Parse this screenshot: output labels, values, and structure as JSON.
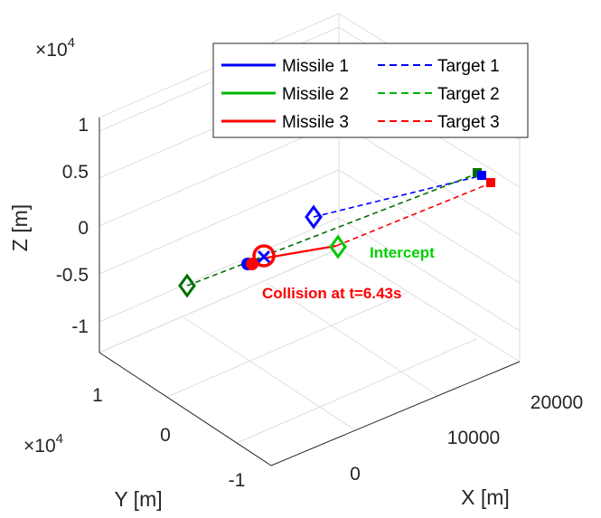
{
  "chart_data": {
    "type": "line",
    "view": "3d",
    "xlabel": "X [m]",
    "ylabel": "Y [m]",
    "zlabel": "Z [m]",
    "x_ticks": [
      "0",
      "10000",
      "20000"
    ],
    "y_ticks": [
      "1",
      "0",
      "-1"
    ],
    "y_exponent": "×10",
    "y_exponent_power": "4",
    "z_ticks": [
      "1",
      "0.5",
      "0",
      "-0.5",
      "-1"
    ],
    "z_exponent": "×10",
    "z_exponent_power": "4",
    "xlim": [
      -2000,
      22000
    ],
    "ylim": [
      -12000,
      12000
    ],
    "zlim": [
      -12000,
      12000
    ],
    "grid": true,
    "legend_position": "top",
    "legend": [
      "Missile 1",
      "Target 1",
      "Missile 2",
      "Target 2",
      "Missile 3",
      "Target 3"
    ],
    "colors": {
      "blue": "#0000ff",
      "green": "#00b400",
      "dark_green": "#007000",
      "red": "#ff0000",
      "intercept_green": "#00d000"
    },
    "series": [
      {
        "name": "Missile 1",
        "style": "solid",
        "color": "#0000ff",
        "points": [
          {
            "x": 2500,
            "y": -4500,
            "z": 0
          },
          {
            "x": 3300,
            "y": -4200,
            "z": 0
          }
        ]
      },
      {
        "name": "Target 1",
        "style": "dashed",
        "color": "#0000ff",
        "points": [
          {
            "x": 2800,
            "y": -3800,
            "z": 4000
          },
          {
            "x": 17800,
            "y": 3300,
            "z": 0
          }
        ]
      },
      {
        "name": "Missile 2",
        "style": "solid",
        "color": "#00b400",
        "points": [
          {
            "x": 2500,
            "y": -4500,
            "z": 0
          },
          {
            "x": 3300,
            "y": -4200,
            "z": 0
          }
        ]
      },
      {
        "name": "Target 2",
        "style": "dashed",
        "color": "#007000",
        "points": [
          {
            "x": -4700,
            "y": -1800,
            "z": 0
          },
          {
            "x": 17500,
            "y": 3300,
            "z": 0
          }
        ]
      },
      {
        "name": "Missile 3",
        "style": "solid",
        "color": "#ff0000",
        "points": [
          {
            "x": 2500,
            "y": -4700,
            "z": 0
          },
          {
            "x": 8000,
            "y": -3400,
            "z": 0
          }
        ]
      },
      {
        "name": "Target 3",
        "style": "dashed",
        "color": "#ff0000",
        "points": [
          {
            "x": 8000,
            "y": -3400,
            "z": 0
          },
          {
            "x": 18400,
            "y": 3000,
            "z": 0
          }
        ]
      }
    ],
    "annotations": [
      {
        "text": "Intercept",
        "color": "#00d000"
      },
      {
        "text": "Collision at t=6.43s",
        "color": "#ff0000"
      }
    ]
  }
}
